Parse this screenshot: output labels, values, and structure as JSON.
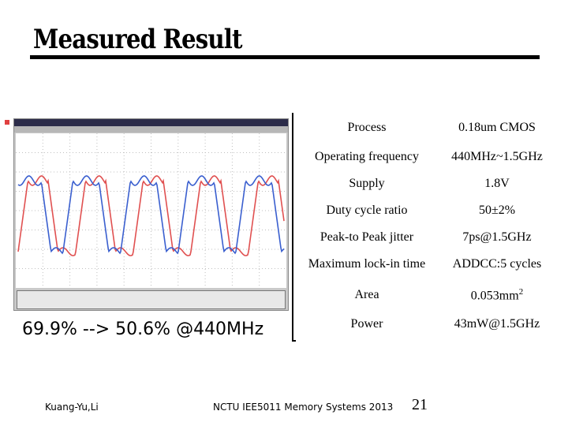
{
  "slide": {
    "title": "Measured Result",
    "caption": "69.9% --> 50.6% @440MHz",
    "author": "Kuang-Yu,Li",
    "course": "NCTU IEE5011 Memory Systems 2013",
    "page_number": "21"
  },
  "spec_table": {
    "rows": [
      {
        "label": "Process",
        "value": "0.18um CMOS"
      },
      {
        "label": "Operating frequency",
        "value": "440MHz~1.5GHz"
      },
      {
        "label": "Supply",
        "value": "1.8V"
      },
      {
        "label": "Duty cycle ratio",
        "value": "50±2%"
      },
      {
        "label": "Peak-to Peak jitter",
        "value": "7ps@1.5GHz"
      },
      {
        "label": "Maximum lock-in time",
        "value": "ADDCC:5 cycles"
      },
      {
        "label": "Area",
        "value": "0.053mm",
        "value_sup": "2"
      },
      {
        "label": "Power",
        "value": "43mW@1.5GHz"
      }
    ]
  },
  "scope": {
    "colors": {
      "trace_red": "#e05050",
      "trace_blue": "#3a5fcf",
      "grid": "#bfbfbf",
      "bg": "#ffffff"
    }
  }
}
